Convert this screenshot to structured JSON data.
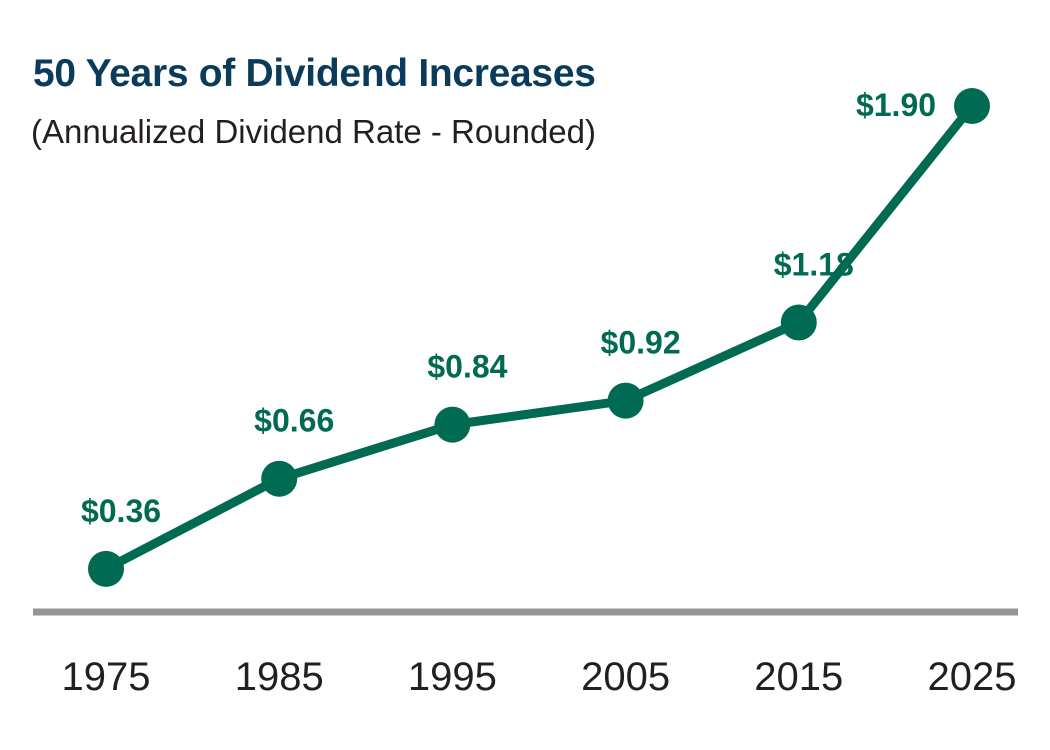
{
  "chart_data": {
    "type": "line",
    "title": "50 Years of Dividend Increases",
    "subtitle": "(Annualized Dividend Rate - Rounded)",
    "xlabel": "",
    "ylabel": "",
    "categories": [
      "1975",
      "1985",
      "1995",
      "2005",
      "2015",
      "2025"
    ],
    "values": [
      0.36,
      0.66,
      0.84,
      0.92,
      1.18,
      1.9
    ],
    "data_labels": [
      "$0.36",
      "$0.66",
      "$0.84",
      "$0.92",
      "$1.18",
      "$1.90"
    ],
    "ylim": [
      0.2,
      2.0
    ],
    "grid": false,
    "colors": {
      "line": "#006a53",
      "title": "#0b3b5a",
      "axis": "#939598",
      "text": "#231f20"
    }
  }
}
